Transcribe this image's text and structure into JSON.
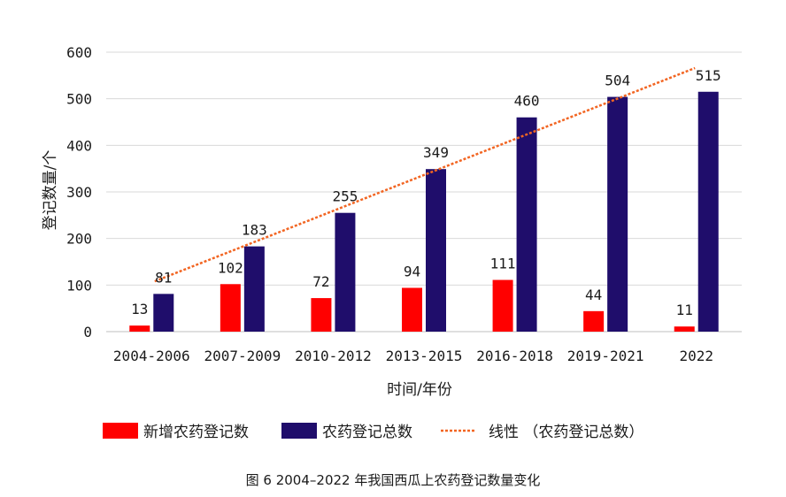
{
  "chart_data": {
    "type": "bar",
    "title": "",
    "caption": "图 6  2004–2022 年我国西瓜上农药登记数量变化",
    "xlabel": "时间/年份",
    "ylabel": "登记数量/个",
    "ylim": [
      0,
      600
    ],
    "yticks": [
      "0",
      "100",
      "200",
      "300",
      "400",
      "500",
      "600"
    ],
    "categories": [
      "2004-2006",
      "2007-2009",
      "2010-2012",
      "2013-2015",
      "2016-2018",
      "2019-2021",
      "2022"
    ],
    "series": [
      {
        "name": "新增农药登记数",
        "values": [
          13,
          102,
          72,
          94,
          111,
          44,
          11
        ],
        "color": "#ff0000"
      },
      {
        "name": "农药登记总数",
        "values": [
          81,
          183,
          255,
          349,
          460,
          504,
          515
        ],
        "color": "#1f0d6b"
      }
    ],
    "trendline": {
      "name": "线性 （农药登记总数）",
      "color": "#f26522",
      "from": 108,
      "to": 566
    },
    "grid": true,
    "legend": "bottom"
  }
}
